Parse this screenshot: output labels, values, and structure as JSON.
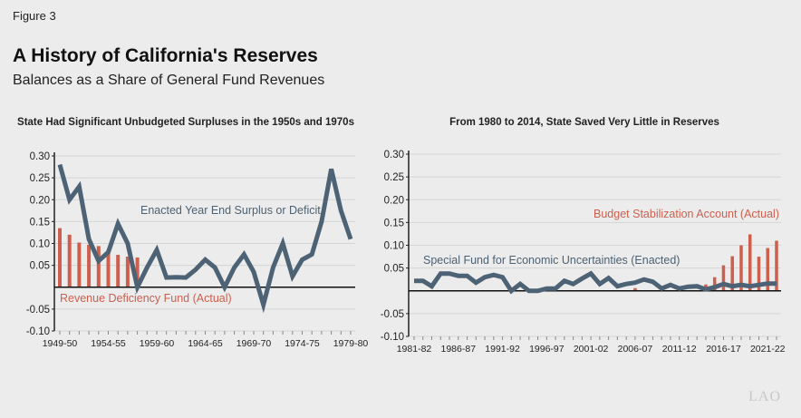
{
  "figure_label": "Figure 3",
  "title": "A History of California's Reserves",
  "subtitle": "Balances as a Share of General Fund Revenues",
  "logo": "LAO",
  "colors": {
    "line": "#4d6274",
    "bar": "#cd5f4e",
    "grid": "#d4d6d6"
  },
  "chart_data": [
    {
      "type": "line+bar",
      "title": "State Had Significant Unbudgeted Surpluses in the 1950s and 1970s",
      "ylim": [
        -0.1,
        0.3
      ],
      "yticks": [
        "0.30",
        "0.25",
        "0.20",
        "0.15",
        "0.10",
        "0.05",
        "-0.05",
        "-0.10"
      ],
      "x_tick_labels": [
        "1949-50",
        "1954-55",
        "1959-60",
        "1964-65",
        "1969-70",
        "1974-75",
        "1979-80"
      ],
      "x_start_year": 1949,
      "series": [
        {
          "name": "Enacted Year End Surplus or Deficit",
          "type": "line",
          "values": [
            0.28,
            0.2,
            0.23,
            0.11,
            0.06,
            0.08,
            0.145,
            0.1,
            0.0,
            0.045,
            0.085,
            0.022,
            0.023,
            0.022,
            0.04,
            0.063,
            0.045,
            0.0,
            0.045,
            0.075,
            0.035,
            -0.04,
            0.045,
            0.1,
            0.025,
            0.063,
            0.075,
            0.15,
            0.27,
            0.175,
            0.11
          ]
        },
        {
          "name": "Revenue Deficiency Fund (Actual)",
          "type": "bar",
          "values": [
            0.135,
            0.12,
            0.102,
            0.097,
            0.094,
            0.086,
            0.074,
            0.07,
            0.068
          ]
        }
      ]
    },
    {
      "type": "line+bar",
      "title": "From 1980 to 2014, State Saved Very Little in Reserves",
      "ylim": [
        -0.1,
        0.3
      ],
      "yticks": [
        "0.30",
        "0.25",
        "0.20",
        "0.15",
        "0.10",
        "0.05",
        "-0.05",
        "-0.10"
      ],
      "x_tick_labels": [
        "1981-82",
        "1986-87",
        "1991-92",
        "1996-97",
        "2001-02",
        "2006-07",
        "2011-12",
        "2016-17",
        "2021-22"
      ],
      "x_start_year": 1981,
      "series": [
        {
          "name": "Special Fund for Economic Uncertainties (Enacted)",
          "type": "line",
          "values": [
            0.022,
            0.022,
            0.01,
            0.038,
            0.038,
            0.033,
            0.033,
            0.018,
            0.03,
            0.035,
            0.03,
            0.0,
            0.015,
            0.0,
            0.0,
            0.005,
            0.005,
            0.022,
            0.015,
            0.027,
            0.038,
            0.015,
            0.028,
            0.01,
            0.015,
            0.018,
            0.025,
            0.02,
            0.005,
            0.013,
            0.005,
            0.009,
            0.01,
            0.003,
            0.008,
            0.015,
            0.01,
            0.013,
            0.01,
            0.013,
            0.016,
            0.016
          ]
        },
        {
          "name": "Budget Stabilization Account (Actual)",
          "type": "bar",
          "values": [
            0,
            0,
            0,
            0,
            0,
            0,
            0,
            0,
            0,
            0,
            0,
            0,
            0,
            0,
            0,
            0,
            0,
            0,
            0,
            0,
            0,
            0,
            0,
            0,
            0,
            0.006,
            0,
            0,
            0,
            0,
            0,
            0,
            0,
            0.014,
            0.03,
            0.056,
            0.076,
            0.1,
            0.124,
            0.075,
            0.094,
            0.11
          ]
        }
      ]
    }
  ]
}
